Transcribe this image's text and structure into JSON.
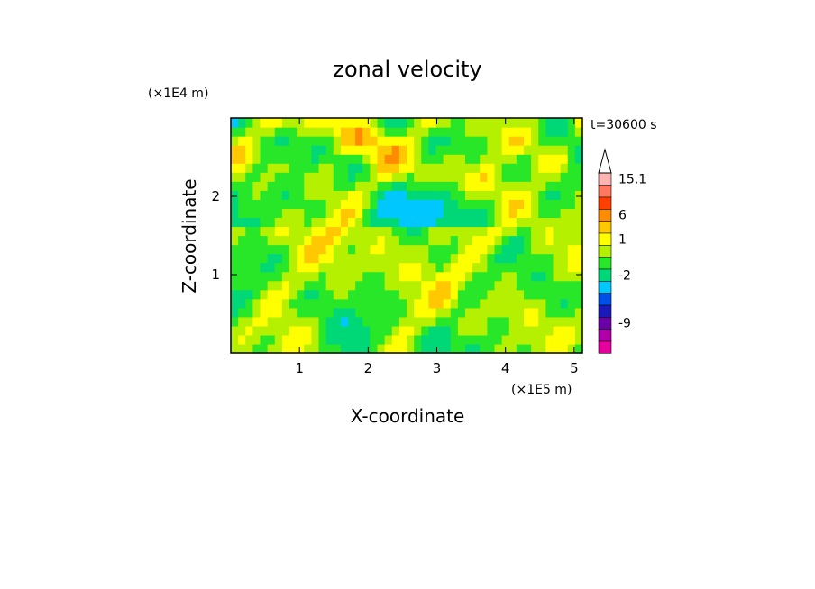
{
  "chart_data": {
    "type": "heatmap",
    "title": "zonal velocity",
    "xlabel": "X-coordinate",
    "ylabel": "Z-coordinate",
    "x_unit": "(×1E5 m)",
    "y_unit": "(×1E4 m)",
    "time_label": "t=30600 s",
    "xlim": [
      0,
      5.12
    ],
    "ylim": [
      0,
      3.0
    ],
    "x_ticks": [
      {
        "value": 1,
        "label": "1"
      },
      {
        "value": 2,
        "label": "2"
      },
      {
        "value": 3,
        "label": "3"
      },
      {
        "value": 4,
        "label": "4"
      },
      {
        "value": 5,
        "label": "5"
      }
    ],
    "y_ticks": [
      {
        "value": 1,
        "label": "1"
      },
      {
        "value": 2,
        "label": "2"
      }
    ],
    "colorbar": {
      "levels": [
        {
          "color": "#e6009e"
        },
        {
          "color": "#b000a8"
        },
        {
          "color": "#6a00a8"
        },
        {
          "color": "#1a1ab8"
        },
        {
          "color": "#0050e6"
        },
        {
          "color": "#00c8ff"
        },
        {
          "color": "#00d878"
        },
        {
          "color": "#28e628"
        },
        {
          "color": "#b4f000"
        },
        {
          "color": "#ffff00"
        },
        {
          "color": "#ffc800"
        },
        {
          "color": "#ff8c00"
        },
        {
          "color": "#ff4000"
        },
        {
          "color": "#ff7860"
        },
        {
          "color": "#ffb4b4"
        }
      ],
      "labels": [
        {
          "text": "15.1",
          "level_index": 14
        },
        {
          "text": "6",
          "level_index": 11
        },
        {
          "text": "1",
          "level_index": 9
        },
        {
          "text": "-2",
          "level_index": 6
        },
        {
          "text": "-9",
          "level_index": 2
        }
      ],
      "extend_max": true
    },
    "field": {
      "nx": 48,
      "nz": 26,
      "note": "zonal velocity field sampled on a grid; values are colour-level indices 0-14",
      "background_level": 8
    }
  }
}
